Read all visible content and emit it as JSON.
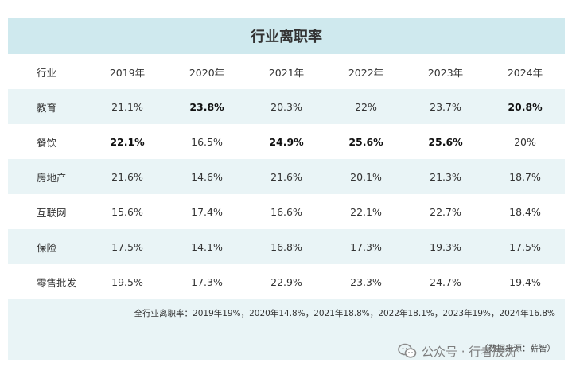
{
  "title": "行业离职率",
  "table": {
    "header": [
      "行业",
      "2019年",
      "2020年",
      "2021年",
      "2022年",
      "2023年",
      "2024年"
    ],
    "rows": [
      {
        "category": "教育",
        "values": [
          "21.1%",
          "23.8%",
          "20.3%",
          "22%",
          "23.7%",
          "20.8%"
        ],
        "bold": [
          false,
          true,
          false,
          false,
          false,
          true
        ]
      },
      {
        "category": "餐饮",
        "values": [
          "22.1%",
          "16.5%",
          "24.9%",
          "25.6%",
          "25.6%",
          "20%"
        ],
        "bold": [
          true,
          false,
          true,
          true,
          true,
          false
        ]
      },
      {
        "category": "房地产",
        "values": [
          "21.6%",
          "14.6%",
          "21.6%",
          "20.1%",
          "21.3%",
          "18.7%"
        ],
        "bold": [
          false,
          false,
          false,
          false,
          false,
          false
        ]
      },
      {
        "category": "互联网",
        "values": [
          "15.6%",
          "17.4%",
          "16.6%",
          "22.1%",
          "22.7%",
          "18.4%"
        ],
        "bold": [
          false,
          false,
          false,
          false,
          false,
          false
        ]
      },
      {
        "category": "保险",
        "values": [
          "17.5%",
          "14.1%",
          "16.8%",
          "17.3%",
          "19.3%",
          "17.5%"
        ],
        "bold": [
          false,
          false,
          false,
          false,
          false,
          false
        ]
      },
      {
        "category": "零售批发",
        "values": [
          "19.5%",
          "17.3%",
          "22.9%",
          "23.3%",
          "24.7%",
          "19.4%"
        ],
        "bold": [
          false,
          false,
          false,
          false,
          false,
          false
        ]
      }
    ]
  },
  "summary": "全行业离职率：2019年19%，2020年14.8%，2021年18.8%，2022年18.1%，2023年19%，2024年16.8%",
  "source": "（数据来源：薪智）",
  "watermark": "公众号 · 行者殷涛",
  "colors": {
    "header_bg": "#cfe9ee",
    "stripe": "#e9f4f6"
  }
}
